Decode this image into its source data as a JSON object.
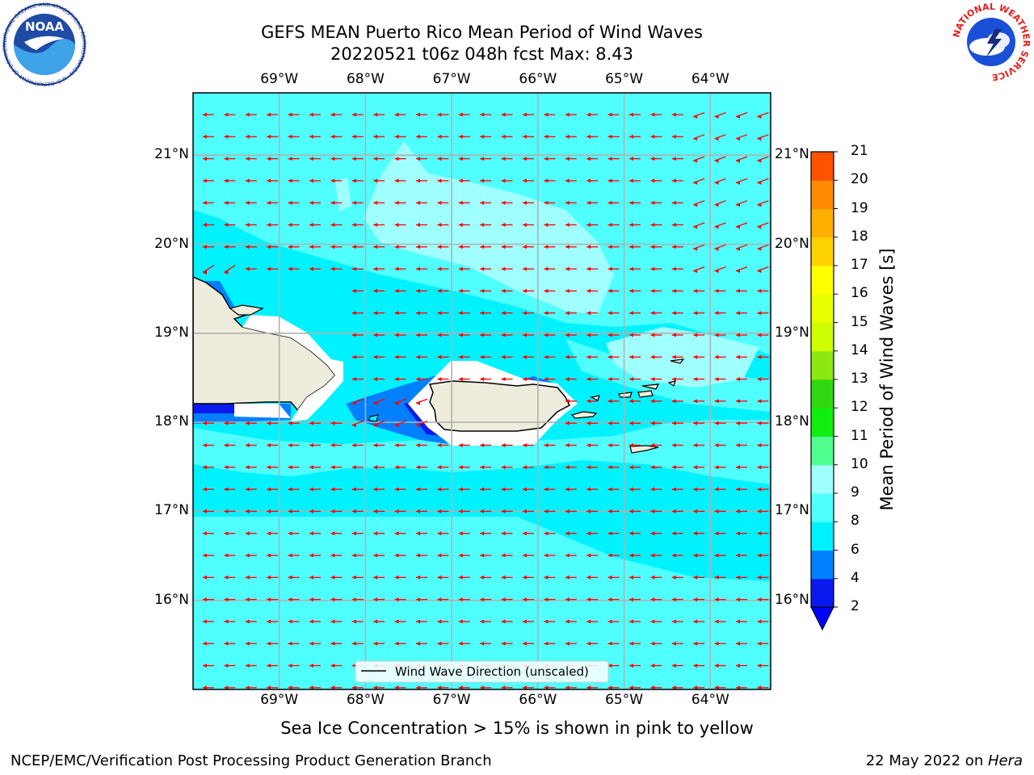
{
  "title_line1": "GEFS MEAN Puerto Rico Mean Period of Wind Waves",
  "title_line2": "20220521 t06z 048h fcst   Max: 8.43",
  "logos": {
    "left": "noaa-logo",
    "left_text": "NOAA",
    "left_ring_text": "NATIONAL OCEANIC AND ATMOSPHERIC ADMINISTRATION · U.S. DEPARTMENT OF COMMERCE",
    "right": "nws-logo",
    "right_ring_text": "NATIONAL WEATHER SERVICE"
  },
  "map": {
    "lon_labels": [
      "69°W",
      "68°W",
      "67°W",
      "66°W",
      "65°W",
      "64°W"
    ],
    "lat_labels": [
      "21°N",
      "20°N",
      "19°N",
      "18°N",
      "17°N",
      "16°N"
    ],
    "legend_text": "Wind Wave Direction (unscaled)",
    "arrow_color": "#ff0000",
    "grid_color": "#b0b0b0",
    "land_color": "#eeecdc",
    "wind_direction": "toward west"
  },
  "colorbar": {
    "label": "Mean Period of Wind Waves [s]",
    "ticks": [
      "2",
      "4",
      "6",
      "8",
      "9",
      "10",
      "11",
      "12",
      "13",
      "14",
      "15",
      "16",
      "17",
      "18",
      "19",
      "20",
      "21"
    ],
    "colors": [
      "#0a1aef",
      "#0080ff",
      "#00f2ff",
      "#50ffff",
      "#a0ffff",
      "#50ff90",
      "#10ef10",
      "#30d710",
      "#8ce810",
      "#cdff00",
      "#e8ff00",
      "#ffff00",
      "#ffd200",
      "#ffaf00",
      "#ff8a00",
      "#ff5200",
      "#ff2a00",
      "#ff0000"
    ],
    "under_color": "#0000ff"
  },
  "chart_data": {
    "type": "heatmap",
    "title": "GEFS MEAN Puerto Rico Mean Period of Wind Waves",
    "subtitle": "20220521 t06z 048h fcst   Max: 8.43",
    "variable": "Mean Period of Wind Waves [s]",
    "max": 8.43,
    "lon_range": [
      -70,
      -63.3
    ],
    "lat_range": [
      15,
      21.7
    ],
    "color_levels": [
      2,
      4,
      6,
      8,
      9,
      10,
      11,
      12,
      13,
      14,
      15,
      16,
      17,
      18,
      19,
      20,
      21
    ],
    "dominant_period_range_s": [
      4,
      8
    ]
  },
  "footnote": "Sea Ice Concentration > 15% is shown in pink to yellow",
  "footer_left": "NCEP/EMC/Verification Post Processing Product Generation Branch",
  "footer_right_prefix": "22 May 2022 on ",
  "footer_right_host": "Hera"
}
